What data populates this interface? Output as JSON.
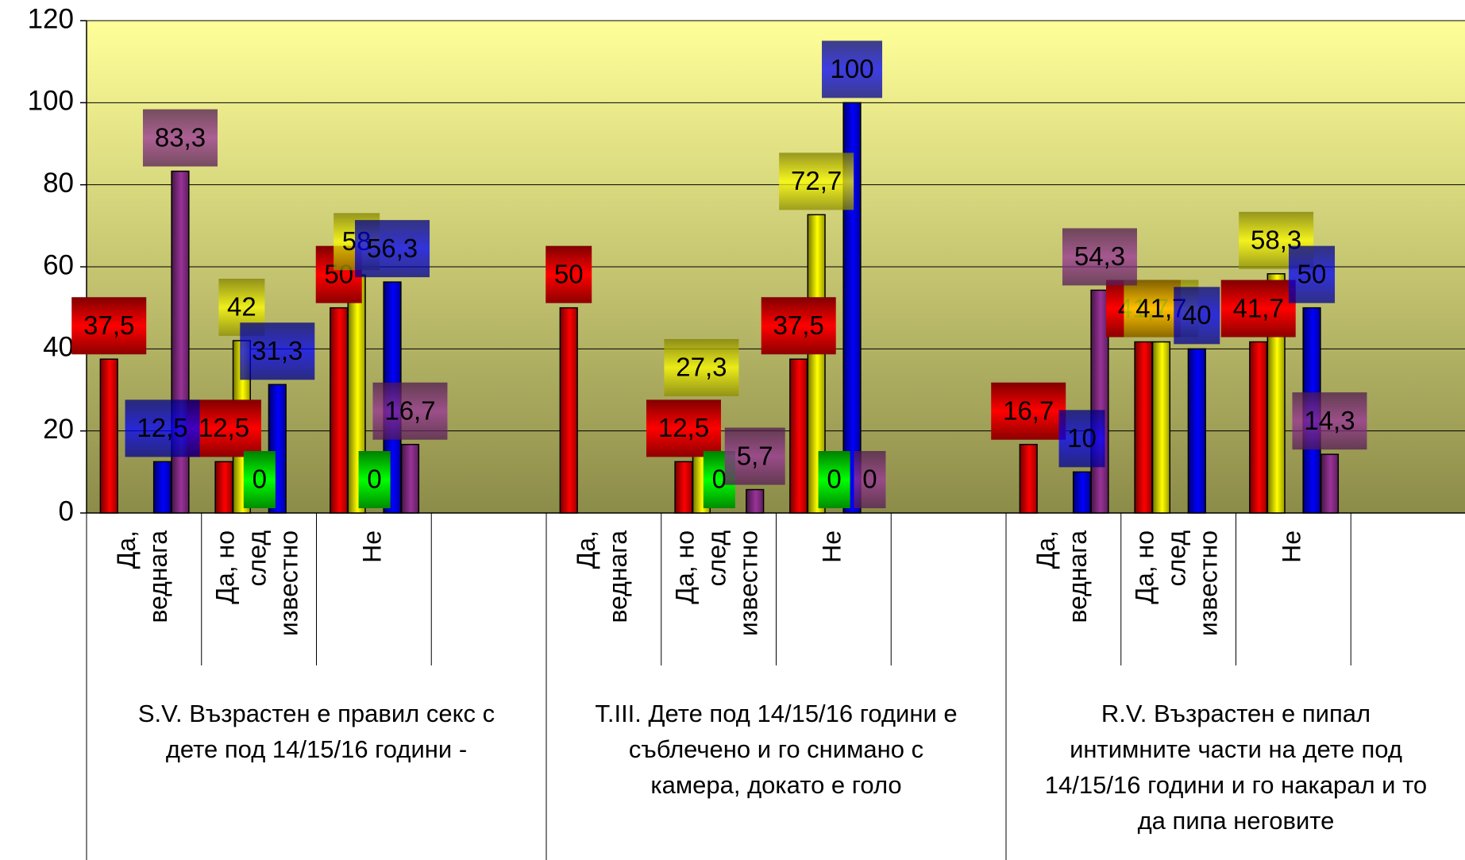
{
  "chart_data": {
    "type": "bar",
    "categories": [
      [
        "Да,",
        "веднага"
      ],
      [
        "Да, но",
        "след",
        "известно"
      ],
      [
        "Не"
      ],
      null,
      [
        "Да,",
        "веднага"
      ],
      [
        "Да, но",
        "след",
        "известно"
      ],
      [
        "Не"
      ],
      null,
      [
        "Да,",
        "веднага"
      ],
      [
        "Да, но",
        "след",
        "известно"
      ],
      [
        "Не"
      ],
      null
    ],
    "groups": [
      [
        "S.V. Възрастен е правил секс с",
        "дете под 14/15/16 години -"
      ],
      [
        "T.III. Дете под 14/15/16 години е",
        "съблечено и го снимано с",
        "камера, докато е голо"
      ],
      [
        "R.V.  Възрастен е пипал",
        "интимните части на дете под",
        "14/15/16 години и го накарал и то",
        "да пипа неговите"
      ]
    ],
    "series": [
      {
        "color": "#ff0000",
        "values": [
          37.5,
          12.5,
          50,
          null,
          50,
          12.5,
          37.5,
          null,
          16.7,
          41.7,
          41.7,
          null
        ],
        "value_labels": [
          "37,5",
          "12,5",
          "50",
          null,
          "50",
          "12,5",
          "37,5",
          null,
          "16,7",
          "41,7",
          "41,7",
          null
        ]
      },
      {
        "color": "#ffff00",
        "values": [
          null,
          42,
          58,
          null,
          null,
          27.3,
          72.7,
          null,
          null,
          41.7,
          58.3,
          null
        ],
        "value_labels": [
          null,
          "42",
          "58",
          null,
          null,
          "27,3",
          "72,7",
          null,
          null,
          "41,7",
          "58,3",
          null
        ]
      },
      {
        "color": "#00ff00",
        "values": [
          null,
          0,
          0,
          null,
          null,
          0,
          0,
          null,
          null,
          null,
          null,
          null
        ],
        "value_labels": [
          null,
          "0",
          "0",
          null,
          null,
          "0",
          "0",
          null,
          null,
          null,
          null,
          null
        ]
      },
      {
        "color": "#0000ff",
        "values": [
          12.5,
          31.3,
          56.3,
          null,
          null,
          null,
          100,
          null,
          10,
          40,
          50,
          null
        ],
        "value_labels": [
          "12,5",
          "31,3",
          "56,3",
          null,
          null,
          null,
          "100",
          null,
          "10",
          "40",
          "50",
          null
        ]
      },
      {
        "color": "#993399",
        "values": [
          83.3,
          null,
          16.7,
          null,
          null,
          5.7,
          0,
          null,
          54.3,
          null,
          14.3,
          null
        ],
        "value_labels": [
          "83,3",
          null,
          "16,7",
          null,
          null,
          "5,7",
          "0",
          null,
          "54,3",
          null,
          "14,3",
          null
        ]
      }
    ],
    "ylim": [
      0,
      120
    ],
    "yticks": [
      0,
      20,
      40,
      60,
      80,
      100,
      120
    ],
    "grid": true
  }
}
